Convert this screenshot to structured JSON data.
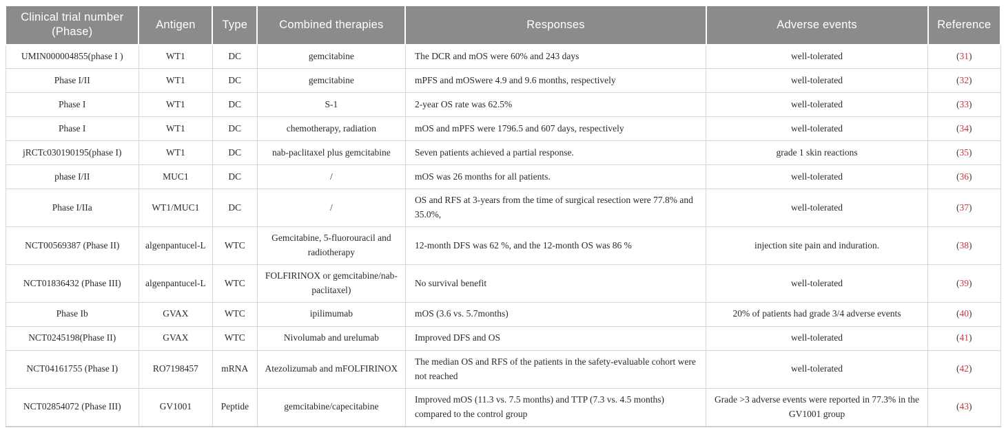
{
  "colors": {
    "header_bg": "#8b8b8b",
    "header_text": "#ffffff",
    "body_text": "#2a2a2a",
    "cell_border": "#d8d8d8",
    "reference_number": "#d0333d"
  },
  "table": {
    "columns": [
      "Clinical trial number (Phase)",
      "Antigen",
      "Type",
      "Combined therapies",
      "Responses",
      "Adverse events",
      "Reference"
    ],
    "rows": [
      {
        "trial": "UMIN000004855(phase I )",
        "antigen": "WT1",
        "type": "DC",
        "therapies": "gemcitabine",
        "responses": "The DCR and mOS were 60% and 243 days",
        "adverse": "well-tolerated",
        "reference": "(31)"
      },
      {
        "trial": "Phase I/II",
        "antigen": "WT1",
        "type": "DC",
        "therapies": "gemcitabine",
        "responses": "mPFS and mOSwere 4.9 and 9.6 months, respectively",
        "adverse": "well-tolerated",
        "reference": "(32)"
      },
      {
        "trial": "Phase I",
        "antigen": "WT1",
        "type": "DC",
        "therapies": "S-1",
        "responses": "2-year OS rate was 62.5%",
        "adverse": "well-tolerated",
        "reference": "(33)"
      },
      {
        "trial": "Phase I",
        "antigen": "WT1",
        "type": "DC",
        "therapies": "chemotherapy, radiation",
        "responses": "mOS and mPFS were 1796.5 and 607 days, respectively",
        "adverse": "well-tolerated",
        "reference": "(34)"
      },
      {
        "trial": "jRCTc030190195(phase I)",
        "antigen": "WT1",
        "type": "DC",
        "therapies": "nab-paclitaxel plus gemcitabine",
        "responses": "Seven patients achieved a partial response.",
        "adverse": "grade 1 skin reactions",
        "reference": "(35)"
      },
      {
        "trial": "phase I/II",
        "antigen": "MUC1",
        "type": "DC",
        "therapies": "/",
        "responses": "mOS was 26 months for all patients.",
        "adverse": "well-tolerated",
        "reference": "(36)"
      },
      {
        "trial": "Phase I/IIa",
        "antigen": "WT1/MUC1",
        "type": "DC",
        "therapies": "/",
        "responses": "OS and RFS at 3-years from the time of surgical resection were 77.8% and 35.0%,",
        "adverse": "well-tolerated",
        "reference": "(37)"
      },
      {
        "trial": "NCT00569387 (Phase II)",
        "antigen": "algenpantucel-L",
        "type": "WTC",
        "therapies": "Gemcitabine, 5-fluorouracil and radiotherapy",
        "responses": "12-month DFS was 62 %, and the 12-month OS was 86 %",
        "adverse": "injection site pain and induration.",
        "reference": "(38)"
      },
      {
        "trial": "NCT01836432 (Phase III)",
        "antigen": "algenpantucel-L",
        "type": "WTC",
        "therapies": "FOLFIRINOX or gemcitabine/nab-paclitaxel)",
        "responses": "No survival benefit",
        "adverse": "well-tolerated",
        "reference": "(39)"
      },
      {
        "trial": "Phase Ib",
        "antigen": "GVAX",
        "type": "WTC",
        "therapies": "ipilimumab",
        "responses": "mOS (3.6 vs. 5.7months)",
        "adverse": "20% of patients had grade 3/4 adverse events",
        "reference": "(40)"
      },
      {
        "trial": "NCT0245198(Phase II)",
        "antigen": "GVAX",
        "type": "WTC",
        "therapies": "Nivolumab and urelumab",
        "responses": "Improved DFS and OS",
        "adverse": "well-tolerated",
        "reference": "(41)"
      },
      {
        "trial": "NCT04161755 (Phase I)",
        "antigen": "RO7198457",
        "type": "mRNA",
        "therapies": "Atezolizumab and mFOLFIRINOX",
        "responses": "The median OS and RFS of the patients in the safety-evaluable cohort were not reached",
        "adverse": "well-tolerated",
        "reference": "(42)"
      },
      {
        "trial": "NCT02854072 (Phase III)",
        "antigen": "GV1001",
        "type": "Peptide",
        "therapies": "gemcitabine/capecitabine",
        "responses": "Improved mOS (11.3 vs. 7.5 months) and TTP (7.3 vs. 4.5 months) compared to the control group",
        "adverse": "Grade >3 adverse events were reported in 77.3% in the GV1001 group",
        "reference": "(43)"
      }
    ]
  }
}
